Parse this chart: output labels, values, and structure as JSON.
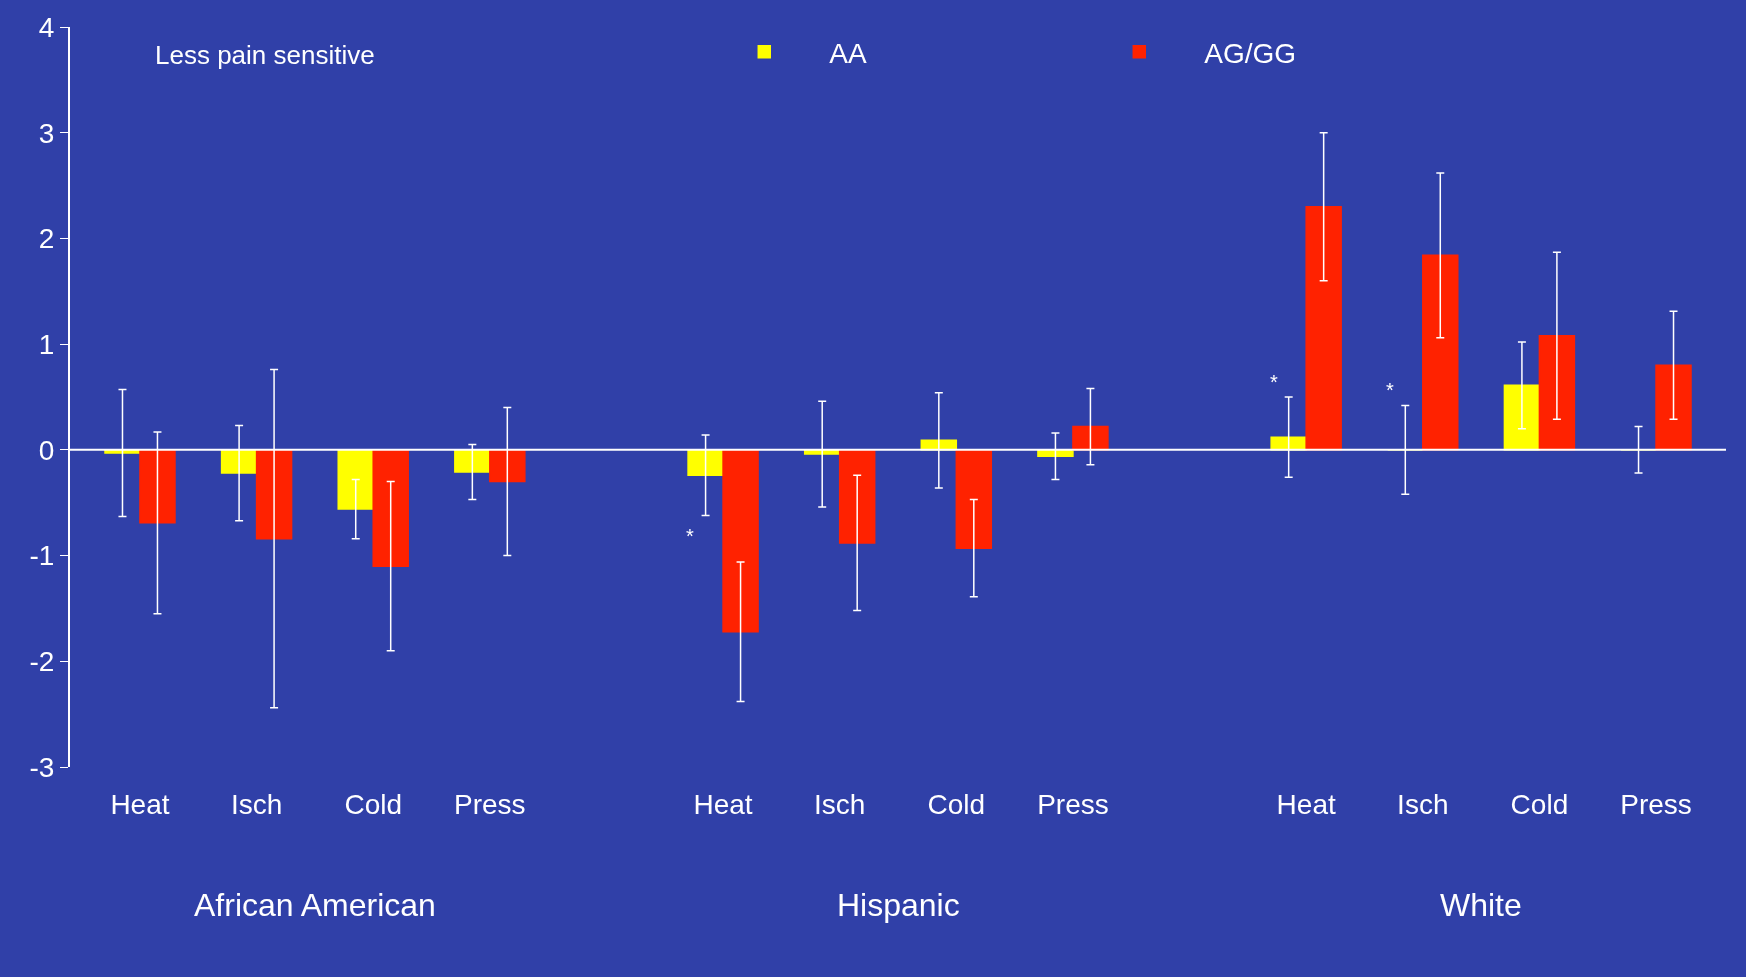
{
  "chart_data": {
    "type": "bar",
    "categories": [
      "Heat",
      "Isch",
      "Cold",
      "Press",
      null,
      "Heat",
      "Isch",
      "Cold",
      "Press",
      null,
      "Heat",
      "Isch",
      "Cold",
      "Press"
    ],
    "series": [
      {
        "name": "AA",
        "color": "#ffff00",
        "values": [
          -0.03,
          -0.22,
          -0.56,
          -0.21,
          null,
          -0.24,
          -0.04,
          0.09,
          -0.06,
          null,
          0.12,
          0.0,
          0.61,
          0.0
        ],
        "errors": [
          0.6,
          0.45,
          0.28,
          0.26,
          null,
          0.38,
          0.5,
          0.45,
          0.22,
          null,
          0.38,
          0.42,
          0.41,
          0.22
        ],
        "value_labels": [
          null,
          null,
          null,
          null,
          null,
          "*",
          null,
          null,
          null,
          null,
          "*",
          "*",
          null,
          null
        ]
      },
      {
        "name": "AG/GG",
        "color": "#ff2200",
        "values": [
          -0.69,
          -0.84,
          -1.1,
          -0.3,
          null,
          -1.72,
          -0.88,
          -0.93,
          0.22,
          null,
          2.3,
          1.84,
          1.08,
          0.8
        ],
        "errors": [
          0.86,
          1.6,
          0.8,
          0.7,
          null,
          0.66,
          0.64,
          0.46,
          0.36,
          null,
          0.7,
          0.78,
          0.79,
          0.51
        ]
      }
    ],
    "annotations": [
      "Less pain sensitive",
      "African American",
      "Hispanic",
      "White"
    ],
    "ylim": [
      -3,
      4
    ],
    "yticks": [
      -3,
      -2,
      -1,
      0,
      1,
      2,
      3,
      4
    ],
    "ref_lines": [
      {
        "axis": "y",
        "value": 0,
        "color": "#ffffff"
      }
    ],
    "legend": "top",
    "grid": false
  }
}
